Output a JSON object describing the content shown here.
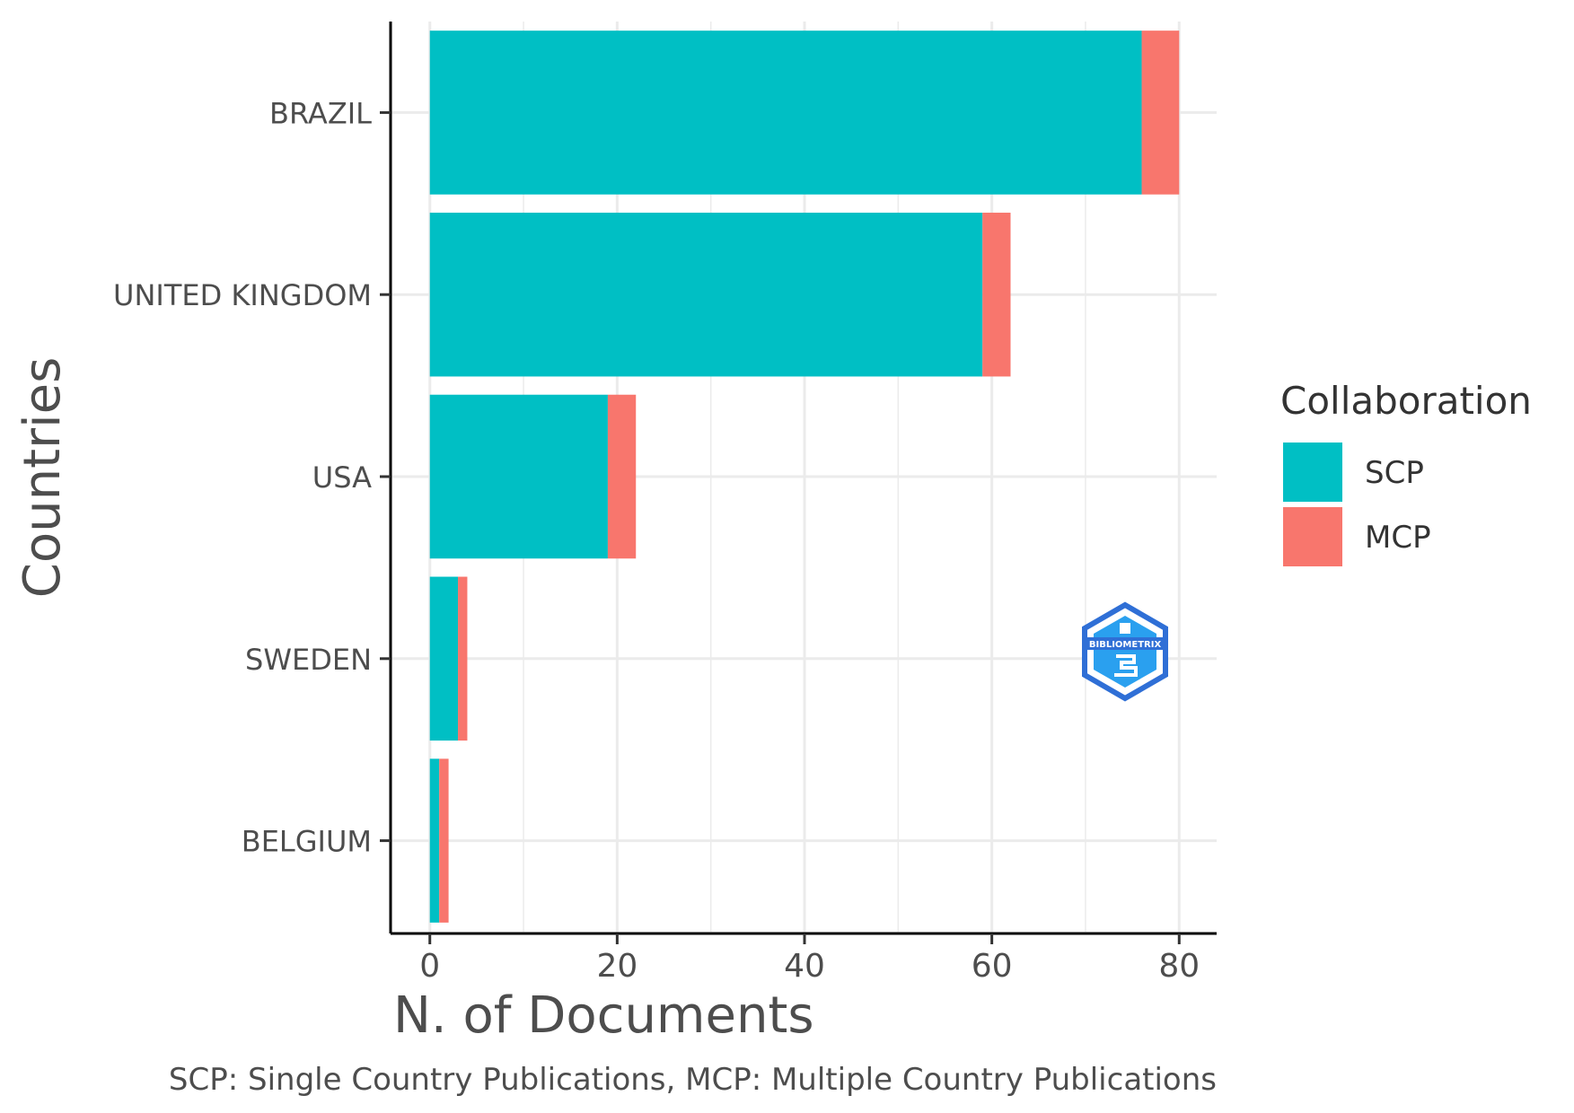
{
  "chart_data": {
    "type": "bar",
    "orientation": "horizontal",
    "stacked": true,
    "categories": [
      "BRAZIL",
      "UNITED KINGDOM",
      "USA",
      "SWEDEN",
      "BELGIUM"
    ],
    "series": [
      {
        "name": "SCP",
        "values": [
          76,
          59,
          19,
          3,
          1
        ],
        "color": "#00BFC4"
      },
      {
        "name": "MCP",
        "values": [
          4,
          3,
          3,
          1,
          1
        ],
        "color": "#F8766D"
      }
    ],
    "xlabel": "N. of Documents",
    "ylabel": "Countries",
    "xlim": [
      -4,
      84
    ],
    "xticks": [
      0,
      20,
      40,
      60,
      80
    ],
    "grid": true,
    "legend": {
      "title": "Collaboration",
      "placement": "right"
    },
    "caption": "SCP: Single Country Publications, MCP: Multiple Country Publications",
    "watermark": {
      "text": "BIBLIOMETRIX",
      "placement": "bottom-right"
    }
  }
}
